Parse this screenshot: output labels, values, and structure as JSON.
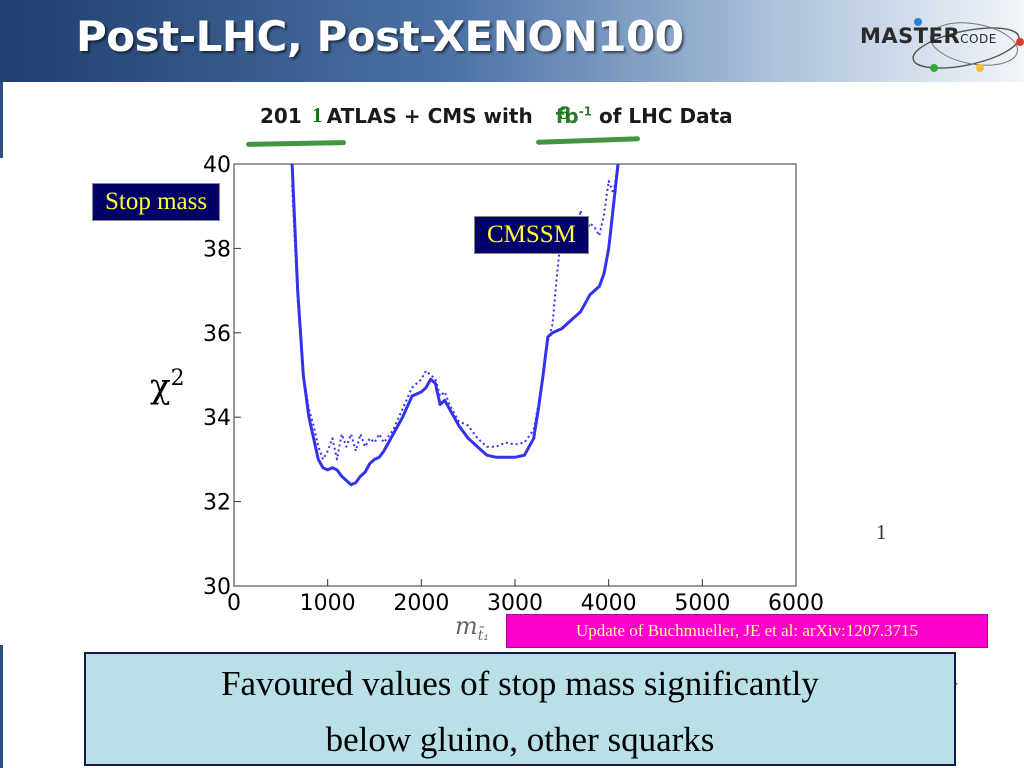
{
  "header": {
    "title": "Post-LHC, Post-XENON100"
  },
  "logo": {
    "main": "MASTER",
    "sub": "CODE",
    "colors": [
      "#2a7fd4",
      "#d83a2a",
      "#35a835",
      "#f2c12e"
    ]
  },
  "subtitle": {
    "prefix": "201",
    "main": "ATLAS + CMS with",
    "unit": "fb",
    "unit_exp": "-1",
    "suffix": "of LHC Data"
  },
  "overwrite": {
    "year_digit": "1",
    "lumi": "5"
  },
  "labels": {
    "stop_mass": "Stop mass",
    "model": "CMSSM",
    "yaxis": "χ",
    "yaxis_exp": "2"
  },
  "stray": {
    "one": "1",
    "dash": "-"
  },
  "xaxis": {
    "symbol": "m",
    "sub": "t̃₁"
  },
  "update": "Update of Buchmueller, JE et al: arXiv:1207.3715",
  "note": {
    "line1": "Favoured values of stop mass significantly",
    "line2": "below gluino, other squarks"
  },
  "chart_data": {
    "type": "line",
    "xlim": [
      0,
      6000
    ],
    "ylim": [
      30,
      40
    ],
    "xticks": [
      "0",
      "1000",
      "2000",
      "3000",
      "4000",
      "5000",
      "6000"
    ],
    "yticks": [
      "30",
      "32",
      "34",
      "36",
      "38",
      "40"
    ],
    "grid": false,
    "color": "#3333ee",
    "series": [
      {
        "style": "solid",
        "x": [
          620,
          680,
          740,
          800,
          850,
          900,
          950,
          1000,
          1050,
          1100,
          1150,
          1200,
          1250,
          1300,
          1350,
          1400,
          1450,
          1500,
          1550,
          1600,
          1700,
          1800,
          1900,
          2000,
          2050,
          2100,
          2150,
          2200,
          2250,
          2300,
          2400,
          2500,
          2600,
          2700,
          2800,
          2900,
          3000,
          3100,
          3200,
          3250,
          3300,
          3350,
          3400,
          3500,
          3600,
          3700,
          3800,
          3850,
          3900,
          3950,
          4000,
          4050,
          4100
        ],
        "y": [
          40,
          37,
          35,
          34,
          33.5,
          33,
          32.8,
          32.75,
          32.8,
          32.75,
          32.6,
          32.5,
          32.4,
          32.45,
          32.6,
          32.7,
          32.9,
          33,
          33.05,
          33.2,
          33.6,
          34,
          34.5,
          34.6,
          34.7,
          34.9,
          34.8,
          34.3,
          34.4,
          34.2,
          33.8,
          33.5,
          33.3,
          33.1,
          33.05,
          33.05,
          33.05,
          33.1,
          33.5,
          34.2,
          35,
          35.9,
          36,
          36.1,
          36.3,
          36.5,
          36.9,
          37,
          37.1,
          37.4,
          38,
          39,
          40
        ]
      },
      {
        "style": "dotted",
        "x": [
          620,
          680,
          740,
          800,
          850,
          900,
          950,
          1000,
          1050,
          1100,
          1150,
          1200,
          1250,
          1300,
          1350,
          1400,
          1450,
          1500,
          1550,
          1600,
          1700,
          1800,
          1900,
          2000,
          2050,
          2100,
          2150,
          2200,
          2250,
          2300,
          2400,
          2500,
          2600,
          2700,
          2800,
          2900,
          3000,
          3100,
          3200,
          3250,
          3300,
          3350,
          3400,
          3450,
          3500,
          3550,
          3600,
          3650,
          3700,
          3750,
          3800,
          3850,
          3900,
          3950,
          4000,
          4050,
          4100
        ],
        "y": [
          39.5,
          36.8,
          35,
          34.2,
          33.8,
          33.3,
          33,
          33.2,
          33.5,
          33,
          33.6,
          33.3,
          33.6,
          33.2,
          33.6,
          33.3,
          33.5,
          33.4,
          33.6,
          33.4,
          33.7,
          34.2,
          34.7,
          34.9,
          35.1,
          35.0,
          34.9,
          34.5,
          34.6,
          34.3,
          33.9,
          33.8,
          33.5,
          33.3,
          33.3,
          33.4,
          33.35,
          33.4,
          33.7,
          34.3,
          35,
          35.8,
          36.2,
          37.4,
          38.5,
          38.1,
          38.7,
          38.2,
          38.9,
          38.3,
          38.6,
          38.5,
          38.3,
          38.8,
          39.6,
          39.3,
          40
        ]
      }
    ]
  }
}
